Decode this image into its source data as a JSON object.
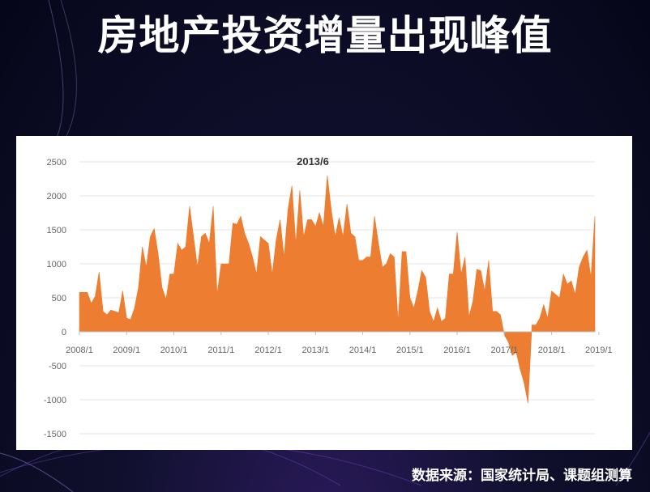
{
  "slide": {
    "title": "房地产投资增量出现峰值",
    "source": "数据来源：国家统计局、课题组测算"
  },
  "chart_data": {
    "type": "area",
    "color": "#ED7D31",
    "annotation": {
      "text": "2013/6"
    },
    "ylim": [
      -1500,
      2500
    ],
    "y_ticks": [
      "2500",
      "2000",
      "1500",
      "1000",
      "500",
      "0",
      "-500",
      "-1000",
      "-1500"
    ],
    "x_ticks": [
      "2008/1",
      "2009/1",
      "2010/1",
      "2011/1",
      "2012/1",
      "2013/1",
      "2014/1",
      "2015/1",
      "2016/1",
      "2017/1",
      "2018/1",
      "2019/1"
    ],
    "x_start": "2008/1",
    "values": [
      580,
      580,
      580,
      420,
      520,
      880,
      300,
      250,
      320,
      300,
      280,
      600,
      200,
      180,
      350,
      650,
      1250,
      950,
      1400,
      1520,
      1150,
      650,
      480,
      850,
      850,
      1300,
      1200,
      1250,
      1850,
      1400,
      950,
      1400,
      1450,
      1300,
      1850,
      550,
      1000,
      1000,
      1000,
      1600,
      1580,
      1700,
      1450,
      1300,
      1100,
      850,
      1400,
      1350,
      1300,
      850,
      1350,
      1650,
      1100,
      1800,
      2150,
      1300,
      2080,
      1400,
      1650,
      1650,
      1550,
      1750,
      1550,
      2300,
      1800,
      1400,
      1680,
      1400,
      1880,
      1450,
      1400,
      1050,
      1050,
      1100,
      1100,
      1700,
      1300,
      950,
      1000,
      1150,
      1100,
      150,
      1180,
      1180,
      500,
      350,
      600,
      900,
      800,
      300,
      150,
      350,
      150,
      200,
      850,
      850,
      1470,
      850,
      1100,
      220,
      450,
      920,
      900,
      600,
      1050,
      300,
      300,
      250,
      -50,
      -150,
      -350,
      -300,
      -550,
      -750,
      -1050,
      100,
      100,
      200,
      400,
      200,
      600,
      550,
      500,
      850,
      700,
      750,
      550,
      950,
      1100,
      1200,
      800,
      1700
    ]
  }
}
